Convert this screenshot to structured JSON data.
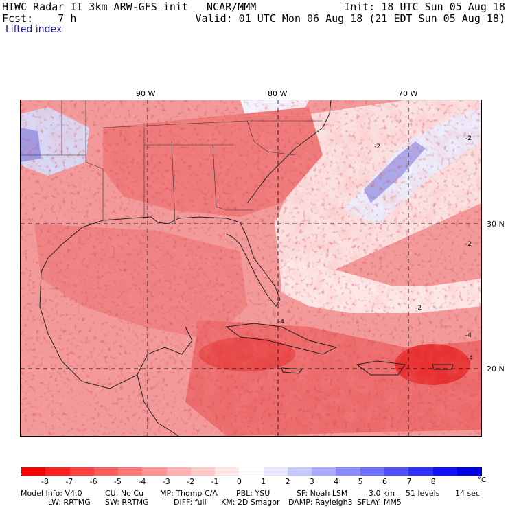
{
  "header": {
    "line1_left": "HIWC Radar II 3km ARW-GFS init   NCAR/MMM",
    "line1_right": "Init: 18 UTC Sun 05 Aug 18",
    "line2_left": "Fcst:    7 h",
    "line2_right": "Valid: 01 UTC Mon 06 Aug 18 (21 EDT Sun 05 Aug 18)",
    "field_name": "Lifted index"
  },
  "map": {
    "lon_labels": [
      "90 W",
      "80 W",
      "70 W"
    ],
    "lat_labels": [
      "30 N",
      "20 N"
    ],
    "contour_labels": [
      "-2",
      "-2",
      "-2",
      "-2",
      "-4",
      "-4",
      "-4"
    ]
  },
  "colorbar": {
    "unit": "°C",
    "ticks": [
      "-8",
      "-7",
      "-6",
      "-5",
      "-4",
      "-3",
      "-2",
      "-1",
      "0",
      "1",
      "2",
      "3",
      "4",
      "5",
      "6",
      "7",
      "8"
    ],
    "colors": [
      "#ff0000",
      "#ff2020",
      "#ff4040",
      "#ff5e5e",
      "#ff7878",
      "#ff9494",
      "#ffb0b0",
      "#ffcaca",
      "#ffe6e6",
      "#ffffff",
      "#e6e6ff",
      "#c8c8ff",
      "#aaaaff",
      "#8c8cff",
      "#6e6eff",
      "#5050ff",
      "#3030ff",
      "#1010ff",
      "#0000e6"
    ]
  },
  "footer": {
    "model_info": "Model Info: V4.0",
    "cu": "CU: No Cu",
    "mp": "MP: Thomp C/A",
    "pbl": "PBL: YSU",
    "sf": "SF: Noah LSM",
    "res": "3.0 km",
    "levels": "51 levels",
    "dt": "14 sec",
    "lw": "LW: RRTMG",
    "sw": "SW: RRTMG",
    "diff": "DIFF: full",
    "km": "KM: 2D Smagor",
    "damp": "DAMP: Rayleigh3",
    "sflay": "SFLAY: MM5"
  }
}
